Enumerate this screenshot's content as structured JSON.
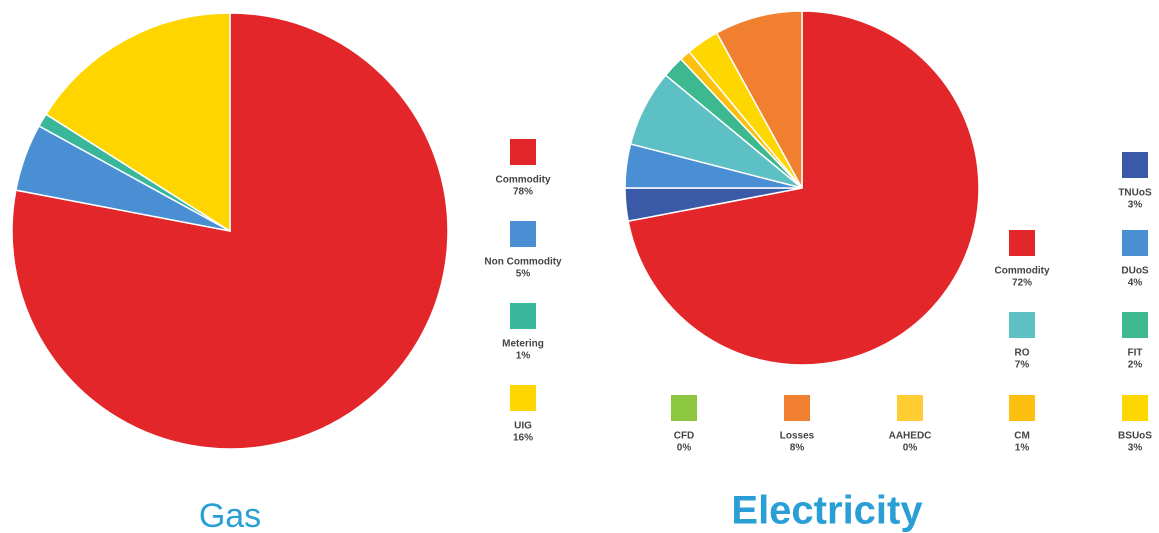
{
  "chart_data": [
    {
      "type": "pie",
      "title": "Gas",
      "categories": [
        "Commodity",
        "Non Commodity",
        "Metering",
        "UIG"
      ],
      "values": [
        78,
        5,
        1,
        16
      ],
      "value_labels": [
        "78%",
        "5%",
        "1%",
        "16%"
      ],
      "colors": [
        "#e3262a",
        "#4a8fd4",
        "#3ab79a",
        "#ffd500"
      ]
    },
    {
      "type": "pie",
      "title": "Electricity",
      "categories": [
        "Commodity",
        "TNUoS",
        "DUoS",
        "RO",
        "FIT",
        "CFD",
        "CM",
        "AAHEDC",
        "BSUoS",
        "Losses"
      ],
      "values": [
        72,
        3,
        4,
        7,
        2,
        0,
        1,
        0,
        3,
        8
      ],
      "value_labels": [
        "72%",
        "3%",
        "4%",
        "7%",
        "2%",
        "0%",
        "1%",
        "0%",
        "3%",
        "8%"
      ],
      "colors": [
        "#e3262a",
        "#3a5aa8",
        "#4a8fd4",
        "#5cc0c4",
        "#3db88f",
        "#8dc63f",
        "#fdc010",
        "#ffcc33",
        "#ffd700",
        "#f07f30"
      ]
    }
  ]
}
